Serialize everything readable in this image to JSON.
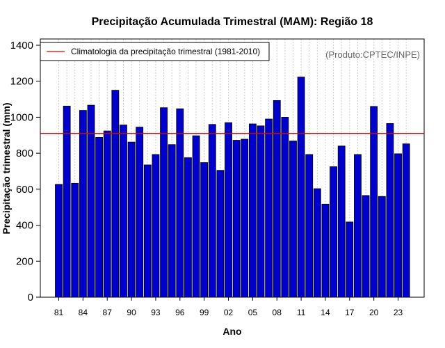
{
  "chart_data": {
    "type": "bar",
    "title": "Precipitação Acumulada Trimestral (MAM): Região 18",
    "xlabel": "Ano",
    "ylabel": "Precipitação trimestral (mm)",
    "credit": "(Produto:CPTEC/INPE)",
    "legend": {
      "label": "Climatologia da precipitação trimestral (1981-2010)",
      "placement": "top-left"
    },
    "climatology": 910,
    "ylim": [
      0,
      1400
    ],
    "yticks": [
      0,
      200,
      400,
      600,
      800,
      1000,
      1200,
      1400
    ],
    "xtick_labels": [
      "81",
      "84",
      "87",
      "90",
      "93",
      "96",
      "99",
      "02",
      "05",
      "08",
      "11",
      "14",
      "17",
      "20",
      "23"
    ],
    "xtick_years": [
      1981,
      1984,
      1987,
      1990,
      1993,
      1996,
      1999,
      2002,
      2005,
      2008,
      2011,
      2014,
      2017,
      2020,
      2023
    ],
    "categories": [
      1981,
      1982,
      1983,
      1984,
      1985,
      1986,
      1987,
      1988,
      1989,
      1990,
      1991,
      1992,
      1993,
      1994,
      1995,
      1996,
      1997,
      1998,
      1999,
      2000,
      2001,
      2002,
      2003,
      2004,
      2005,
      2006,
      2007,
      2008,
      2009,
      2010,
      2011,
      2012,
      2013,
      2014,
      2015,
      2016,
      2017,
      2018,
      2019,
      2020,
      2021,
      2022,
      2023,
      2024
    ],
    "values": [
      627,
      1062,
      633,
      1038,
      1067,
      888,
      924,
      1150,
      957,
      862,
      945,
      735,
      793,
      1053,
      848,
      1047,
      775,
      897,
      748,
      960,
      705,
      970,
      872,
      878,
      963,
      952,
      990,
      1093,
      1000,
      868,
      1223,
      793,
      603,
      517,
      725,
      840,
      418,
      793,
      565,
      1060,
      560,
      965,
      797,
      852
    ],
    "colors": {
      "bar": "#0000cc",
      "bar_edge": "#000000",
      "climatology_line": "#dd0000",
      "grid": "#cccccc"
    }
  }
}
